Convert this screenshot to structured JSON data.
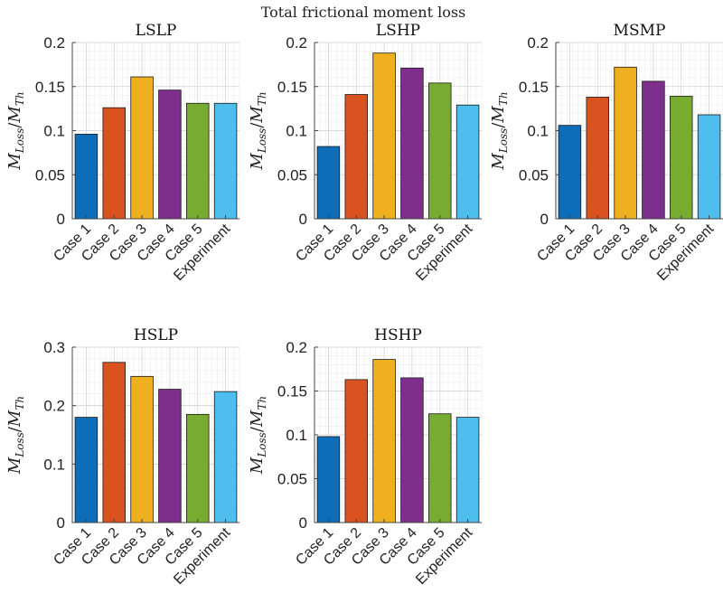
{
  "figure_title": "Total frictional moment loss",
  "y_label": {
    "main": "M",
    "sub1": "Loss",
    "slash": "/",
    "main2": "M",
    "sub2": "Th"
  },
  "colors": [
    "#0e6db8",
    "#d95220",
    "#eeb01f",
    "#7e2f8e",
    "#77ac30",
    "#4dbeee"
  ],
  "chart_data": [
    {
      "type": "bar",
      "title": "LSLP",
      "categories": [
        "Case 1",
        "Case 2",
        "Case 3",
        "Case 4",
        "Case 5",
        "Experiment"
      ],
      "values": [
        0.096,
        0.126,
        0.161,
        0.146,
        0.131,
        0.131
      ],
      "ylim": [
        0,
        0.2
      ],
      "yticks": [
        0,
        0.05,
        0.1,
        0.15,
        0.2
      ],
      "ytick_labels": [
        "0",
        "0.05",
        "0.1",
        "0.15",
        "0.2"
      ],
      "grid": true,
      "xlabel": "",
      "ylabel": "M_Loss/M_Th"
    },
    {
      "type": "bar",
      "title": "LSHP",
      "categories": [
        "Case 1",
        "Case 2",
        "Case 3",
        "Case 4",
        "Case 5",
        "Experiment"
      ],
      "values": [
        0.082,
        0.141,
        0.188,
        0.171,
        0.154,
        0.129
      ],
      "ylim": [
        0,
        0.2
      ],
      "yticks": [
        0,
        0.05,
        0.1,
        0.15,
        0.2
      ],
      "ytick_labels": [
        "0",
        "0.05",
        "0.1",
        "0.15",
        "0.2"
      ],
      "grid": true,
      "xlabel": "",
      "ylabel": "M_Loss/M_Th"
    },
    {
      "type": "bar",
      "title": "MSMP",
      "categories": [
        "Case 1",
        "Case 2",
        "Case 3",
        "Case 4",
        "Case 5",
        "Experiment"
      ],
      "values": [
        0.106,
        0.138,
        0.172,
        0.156,
        0.139,
        0.118
      ],
      "ylim": [
        0,
        0.2
      ],
      "yticks": [
        0,
        0.05,
        0.1,
        0.15,
        0.2
      ],
      "ytick_labels": [
        "0",
        "0.05",
        "0.1",
        "0.15",
        "0.2"
      ],
      "grid": true,
      "xlabel": "",
      "ylabel": "M_Loss/M_Th"
    },
    {
      "type": "bar",
      "title": "HSLP",
      "categories": [
        "Case 1",
        "Case 2",
        "Case 3",
        "Case 4",
        "Case 5",
        "Experiment"
      ],
      "values": [
        0.18,
        0.274,
        0.25,
        0.228,
        0.185,
        0.224
      ],
      "ylim": [
        0,
        0.3
      ],
      "yticks": [
        0,
        0.1,
        0.2,
        0.3
      ],
      "ytick_labels": [
        "0",
        "0.1",
        "0.2",
        "0.3"
      ],
      "grid": true,
      "xlabel": "",
      "ylabel": "M_Loss/M_Th"
    },
    {
      "type": "bar",
      "title": "HSHP",
      "categories": [
        "Case 1",
        "Case 2",
        "Case 3",
        "Case 4",
        "Case 5",
        "Experiment"
      ],
      "values": [
        0.098,
        0.163,
        0.186,
        0.165,
        0.124,
        0.12
      ],
      "ylim": [
        0,
        0.2
      ],
      "yticks": [
        0,
        0.05,
        0.1,
        0.15,
        0.2
      ],
      "ytick_labels": [
        "0",
        "0.05",
        "0.1",
        "0.15",
        "0.2"
      ],
      "grid": true,
      "xlabel": "",
      "ylabel": "M_Loss/M_Th"
    }
  ]
}
